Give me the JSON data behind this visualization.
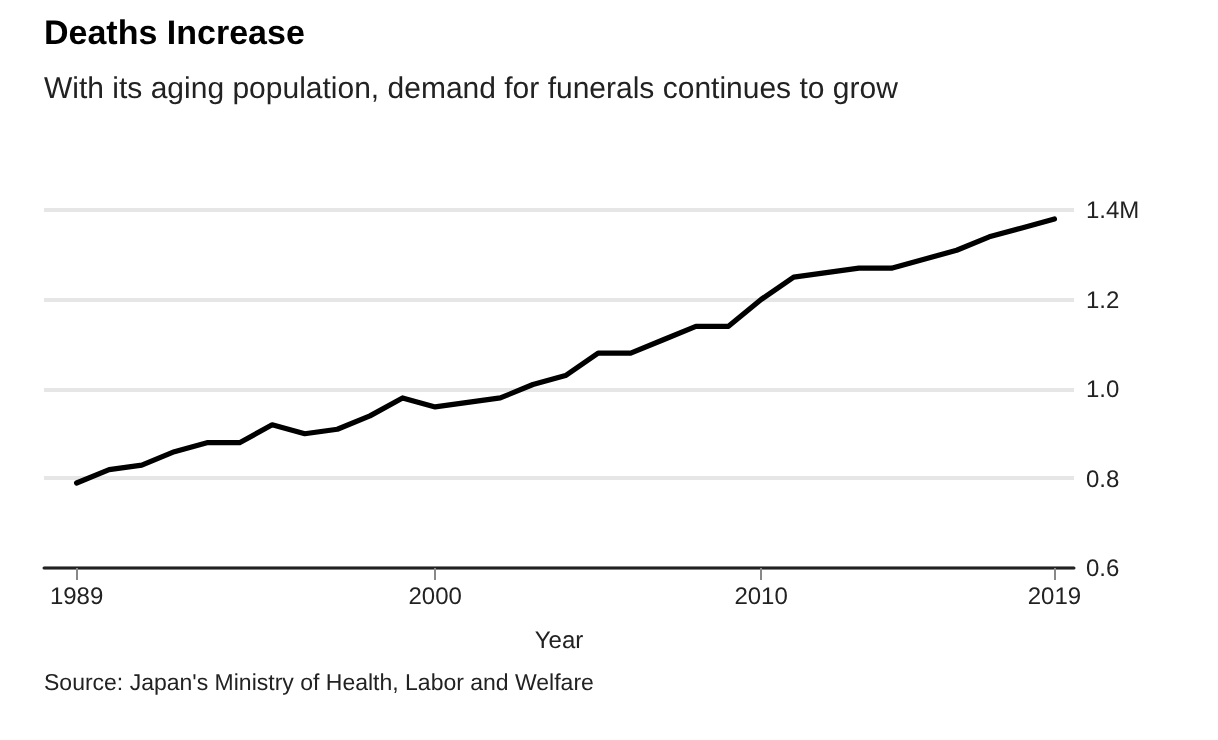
{
  "chart_data": {
    "type": "line",
    "title": "Deaths Increase",
    "subtitle": "With its aging population, demand for funerals continues to grow",
    "xlabel": "Year",
    "annotations": [
      "Source: Japan's Ministry of Health, Labor and Welfare"
    ],
    "x": [
      1989,
      1990,
      1991,
      1992,
      1993,
      1994,
      1995,
      1996,
      1997,
      1998,
      1999,
      2000,
      2001,
      2002,
      2003,
      2004,
      2005,
      2006,
      2007,
      2008,
      2009,
      2010,
      2011,
      2012,
      2013,
      2014,
      2015,
      2016,
      2017,
      2018,
      2019
    ],
    "series": [
      {
        "color": "#000000",
        "values": [
          0.79,
          0.82,
          0.83,
          0.86,
          0.88,
          0.88,
          0.92,
          0.9,
          0.91,
          0.94,
          0.98,
          0.96,
          0.97,
          0.98,
          1.01,
          1.03,
          1.08,
          1.08,
          1.11,
          1.14,
          1.14,
          1.2,
          1.25,
          1.26,
          1.27,
          1.27,
          1.29,
          1.31,
          1.34,
          1.36,
          1.38
        ]
      }
    ],
    "xlim": [
      1988,
      2019.6
    ],
    "xticks": [
      1989,
      2000,
      2010,
      2019
    ],
    "ylim": [
      0.6,
      1.4
    ],
    "yticks": [
      {
        "value": 0.6,
        "label": "0.6"
      },
      {
        "value": 0.8,
        "label": "0.8"
      },
      {
        "value": 1,
        "label": "1.0"
      },
      {
        "value": 1.2,
        "label": "1.2"
      },
      {
        "value": 1.4,
        "label": "1.4M"
      }
    ],
    "grid": "y",
    "marker": "none",
    "line_style": "solid"
  }
}
